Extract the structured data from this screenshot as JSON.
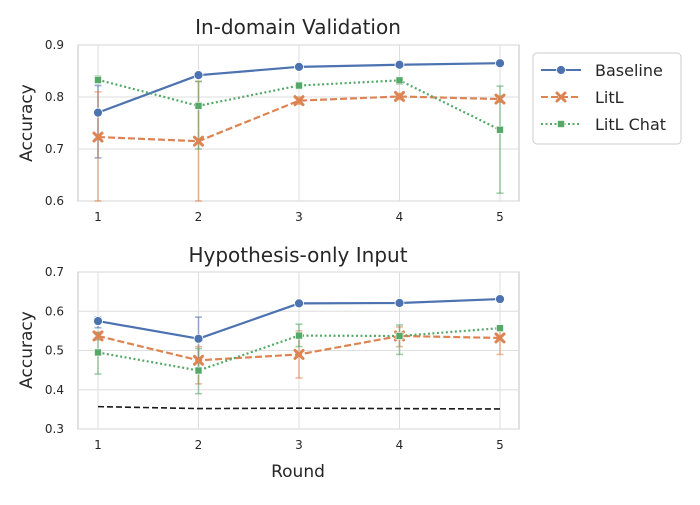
{
  "chart_data": [
    {
      "type": "line",
      "title": "In-domain Validation",
      "xlabel": "",
      "ylabel": "Accuracy",
      "x": [
        1,
        2,
        3,
        4,
        5
      ],
      "ylim": [
        0.6,
        0.9
      ],
      "yticks": [
        0.6,
        0.7,
        0.8,
        0.9
      ],
      "grid": true,
      "legend": "outside-right",
      "series": [
        {
          "name": "Baseline",
          "color": "#4c72b0",
          "marker": "circle",
          "dash": "solid",
          "values": [
            0.77,
            0.842,
            0.858,
            0.862,
            0.865
          ],
          "err_low": [
            0.683,
            0.837,
            0.855,
            0.859,
            0.862
          ],
          "err_high": [
            0.822,
            0.847,
            0.861,
            0.866,
            0.868
          ]
        },
        {
          "name": "LitL",
          "color": "#dd8452",
          "marker": "x",
          "dash": "dashed",
          "values": [
            0.723,
            0.715,
            0.793,
            0.801,
            0.796
          ],
          "err_low": [
            0.6,
            0.6,
            0.786,
            0.795,
            0.79
          ],
          "err_high": [
            0.81,
            0.83,
            0.8,
            0.807,
            0.802
          ]
        },
        {
          "name": "LitL Chat",
          "color": "#55a868",
          "marker": "square",
          "dash": "dotted",
          "values": [
            0.833,
            0.783,
            0.822,
            0.832,
            0.737
          ],
          "err_low": [
            0.826,
            0.7,
            0.816,
            0.825,
            0.615
          ],
          "err_high": [
            0.84,
            0.83,
            0.828,
            0.838,
            0.821
          ]
        }
      ]
    },
    {
      "type": "line",
      "title": "Hypothesis-only Input",
      "xlabel": "Round",
      "ylabel": "Accuracy",
      "x": [
        1,
        2,
        3,
        4,
        5
      ],
      "ylim": [
        0.3,
        0.7
      ],
      "yticks": [
        0.3,
        0.4,
        0.5,
        0.6,
        0.7
      ],
      "grid": true,
      "legend": "none",
      "series": [
        {
          "name": "Baseline",
          "color": "#4c72b0",
          "marker": "circle",
          "dash": "solid",
          "values": [
            0.575,
            0.53,
            0.62,
            0.621,
            0.631
          ],
          "err_low": [
            0.558,
            0.45,
            0.616,
            0.617,
            0.627
          ],
          "err_high": [
            0.585,
            0.585,
            0.624,
            0.625,
            0.635
          ]
        },
        {
          "name": "LitL",
          "color": "#dd8452",
          "marker": "x",
          "dash": "dashed",
          "values": [
            0.537,
            0.475,
            0.49,
            0.537,
            0.532
          ],
          "err_low": [
            0.527,
            0.415,
            0.43,
            0.51,
            0.49
          ],
          "err_high": [
            0.547,
            0.51,
            0.55,
            0.56,
            0.555
          ]
        },
        {
          "name": "LitL Chat",
          "color": "#55a868",
          "marker": "square",
          "dash": "dotted",
          "values": [
            0.495,
            0.449,
            0.538,
            0.537,
            0.557
          ],
          "err_low": [
            0.44,
            0.39,
            0.51,
            0.49,
            0.553
          ],
          "err_high": [
            0.545,
            0.505,
            0.567,
            0.565,
            0.561
          ]
        },
        {
          "color": "#1a1a1a",
          "marker": "none",
          "dash": "dashed",
          "values": [
            0.357,
            0.352,
            0.353,
            0.352,
            0.351
          ]
        }
      ]
    }
  ]
}
